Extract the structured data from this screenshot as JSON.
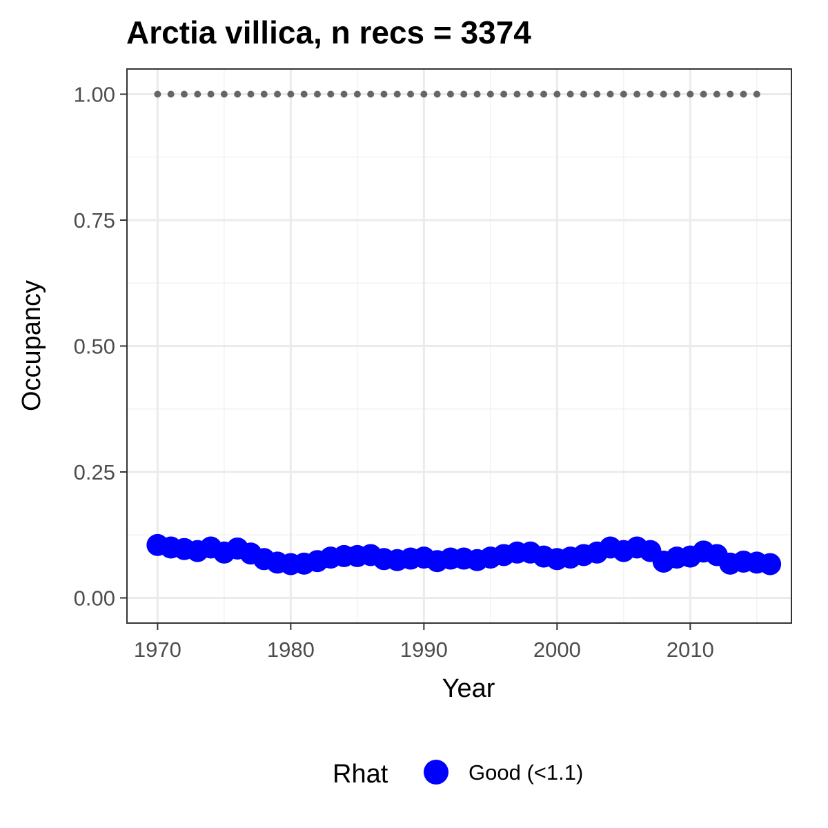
{
  "chart_data": {
    "type": "scatter",
    "title": "Arctia villica, n recs = 3374",
    "xlabel": "Year",
    "ylabel": "Occupancy",
    "xlim": [
      1967.7,
      2017.6
    ],
    "ylim": [
      -0.05,
      1.05
    ],
    "x_ticks": [
      1970,
      1980,
      1990,
      2000,
      2010
    ],
    "x_tick_labels": [
      "1970",
      "1980",
      "1990",
      "2000",
      "2010"
    ],
    "y_ticks": [
      0,
      0.25,
      0.5,
      0.75,
      1
    ],
    "y_tick_labels": [
      "0.00",
      "0.25",
      "0.50",
      "0.75",
      "1.00"
    ],
    "grid": true,
    "legend": {
      "title": "Rhat",
      "placement": "bottom",
      "entries": [
        {
          "label": "Good (<1.1)",
          "color": "#0000ff"
        }
      ]
    },
    "series": [
      {
        "name": "Good (<1.1)",
        "color": "#0000ff",
        "marker": "circle",
        "x": [
          1970,
          1971,
          1972,
          1973,
          1974,
          1975,
          1976,
          1977,
          1978,
          1979,
          1980,
          1981,
          1982,
          1983,
          1984,
          1985,
          1986,
          1987,
          1988,
          1989,
          1990,
          1991,
          1992,
          1993,
          1994,
          1995,
          1996,
          1997,
          1998,
          1999,
          2000,
          2001,
          2002,
          2003,
          2004,
          2005,
          2006,
          2007,
          2008,
          2009,
          2010,
          2011,
          2012,
          2013,
          2014,
          2015,
          2016
        ],
        "y": [
          0.105,
          0.1,
          0.097,
          0.093,
          0.1,
          0.09,
          0.098,
          0.088,
          0.077,
          0.07,
          0.067,
          0.068,
          0.073,
          0.08,
          0.083,
          0.083,
          0.085,
          0.077,
          0.075,
          0.078,
          0.08,
          0.073,
          0.078,
          0.078,
          0.075,
          0.08,
          0.085,
          0.09,
          0.09,
          0.082,
          0.077,
          0.08,
          0.085,
          0.09,
          0.1,
          0.093,
          0.1,
          0.093,
          0.072,
          0.08,
          0.082,
          0.092,
          0.085,
          0.068,
          0.072,
          0.07,
          0.067
        ]
      },
      {
        "name": "",
        "color": "#666666",
        "marker": "small-dot",
        "x": [
          1970,
          1971,
          1972,
          1973,
          1974,
          1975,
          1976,
          1977,
          1978,
          1979,
          1980,
          1981,
          1982,
          1983,
          1984,
          1985,
          1986,
          1987,
          1988,
          1989,
          1990,
          1991,
          1992,
          1993,
          1994,
          1995,
          1996,
          1997,
          1998,
          1999,
          2000,
          2001,
          2002,
          2003,
          2004,
          2005,
          2006,
          2007,
          2008,
          2009,
          2010,
          2011,
          2012,
          2013,
          2014,
          2015
        ],
        "y": [
          1,
          1,
          1,
          1,
          1,
          1,
          1,
          1,
          1,
          1,
          1,
          1,
          1,
          1,
          1,
          1,
          1,
          1,
          1,
          1,
          1,
          1,
          1,
          1,
          1,
          1,
          1,
          1,
          1,
          1,
          1,
          1,
          1,
          1,
          1,
          1,
          1,
          1,
          1,
          1,
          1,
          1,
          1,
          1,
          1,
          1
        ]
      }
    ]
  }
}
